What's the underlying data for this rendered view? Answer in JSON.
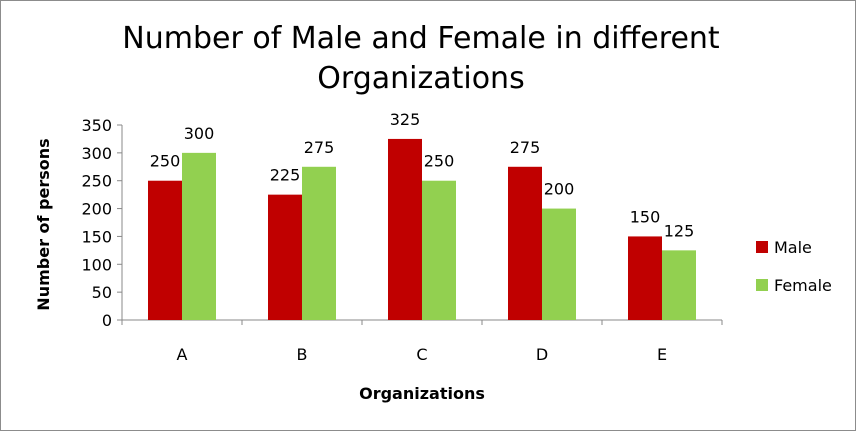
{
  "chart_data": {
    "type": "bar",
    "title": "Number of Male and Female in different Organizations",
    "xlabel": "Organizations",
    "ylabel": "Number of persons",
    "categories": [
      "A",
      "B",
      "C",
      "D",
      "E"
    ],
    "series": [
      {
        "name": "Male",
        "color": "#c00000",
        "values": [
          250,
          225,
          325,
          275,
          150
        ]
      },
      {
        "name": "Female",
        "color": "#92d050",
        "values": [
          300,
          275,
          250,
          200,
          125
        ]
      }
    ],
    "ylim": [
      0,
      350
    ],
    "yticks": [
      0,
      50,
      100,
      150,
      200,
      250,
      300,
      350
    ],
    "grid": false,
    "legend": "right",
    "data_labels": true
  }
}
